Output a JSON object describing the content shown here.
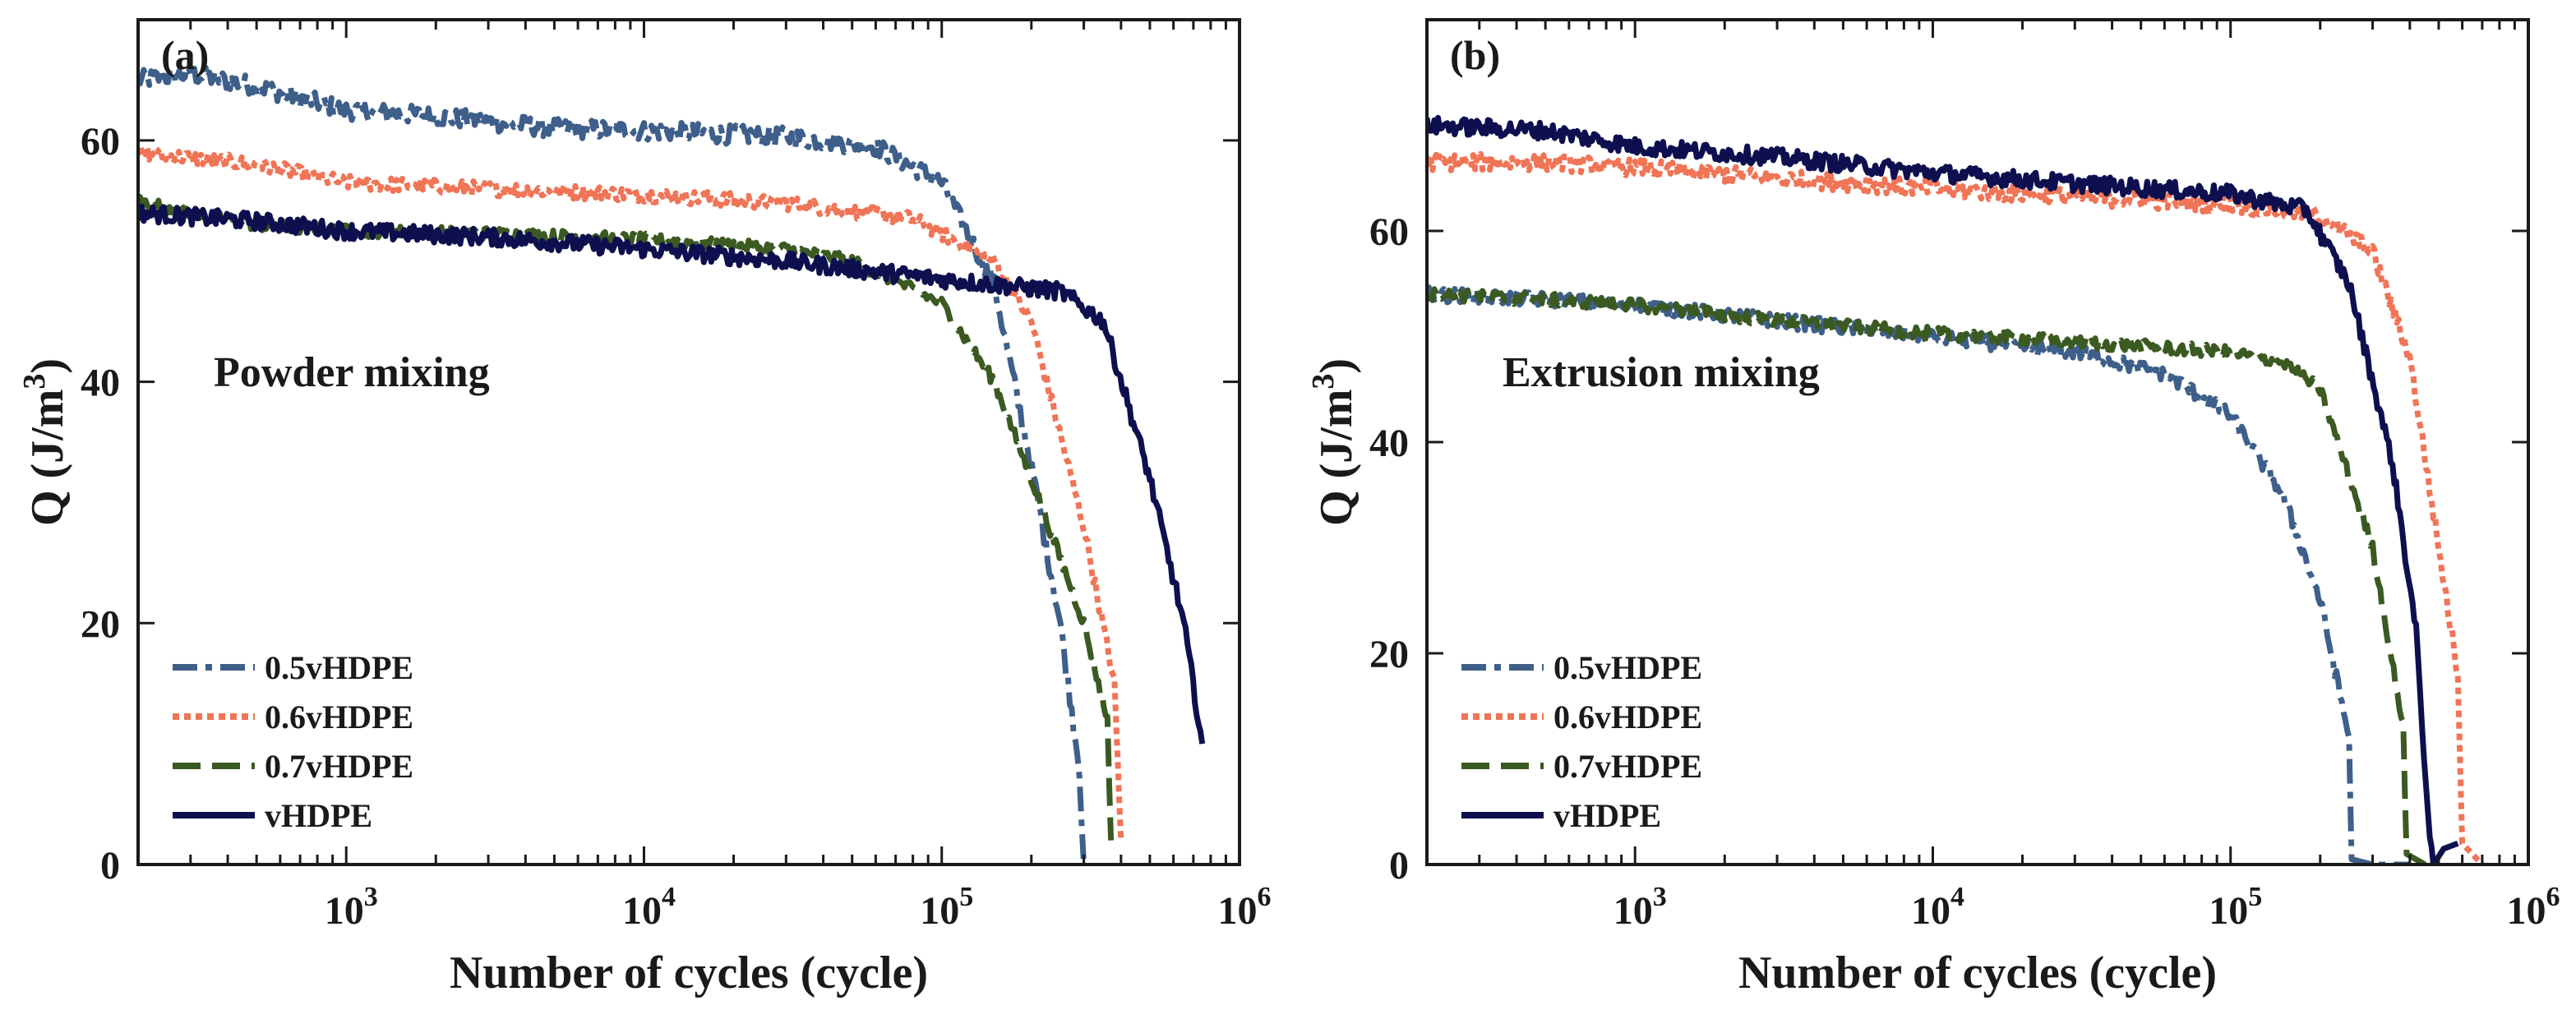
{
  "chart_data": [
    {
      "type": "line",
      "panel_label": "(a)",
      "annotation": "Powder mixing",
      "xlabel": "Number of cycles (cycle)",
      "ylabel": "Q (J/m",
      "ylabel_sup": "3",
      "ylabel_close": ")",
      "xscale": "log",
      "xlim": [
        200,
        1000000
      ],
      "ylim": [
        0,
        70
      ],
      "xticks": [
        {
          "value": 1000,
          "base": "10",
          "exp": "3"
        },
        {
          "value": 10000,
          "base": "10",
          "exp": "4"
        },
        {
          "value": 100000,
          "base": "10",
          "exp": "5"
        },
        {
          "value": 1000000,
          "base": "10",
          "exp": "6"
        }
      ],
      "yticks": [
        {
          "value": 0,
          "label": "0"
        },
        {
          "value": 20,
          "label": "20"
        },
        {
          "value": 40,
          "label": "40"
        },
        {
          "value": 60,
          "label": "60"
        }
      ],
      "legend_position": "lower-left",
      "series": [
        {
          "name": "0.5vHDPE",
          "color": "#3e5f8a",
          "dash": "30 10 8 10",
          "noise": 0.8,
          "points": [
            [
              200,
              65
            ],
            [
              300,
              65.5
            ],
            [
              500,
              64.5
            ],
            [
              700,
              63.5
            ],
            [
              1000,
              62.5
            ],
            [
              2000,
              62
            ],
            [
              5000,
              61
            ],
            [
              10000,
              60.8
            ],
            [
              30000,
              60.3
            ],
            [
              60000,
              59.5
            ],
            [
              100000,
              56.5
            ],
            [
              150000,
              48
            ],
            [
              200000,
              33
            ],
            [
              250000,
              20
            ],
            [
              290000,
              8
            ],
            [
              300000,
              0
            ]
          ]
        },
        {
          "name": "0.6vHDPE",
          "color": "#f07456",
          "dash": "8 6",
          "noise": 0.6,
          "points": [
            [
              200,
              59
            ],
            [
              500,
              58
            ],
            [
              1000,
              56.5
            ],
            [
              3000,
              56
            ],
            [
              10000,
              55.5
            ],
            [
              30000,
              54.8
            ],
            [
              80000,
              53.5
            ],
            [
              150000,
              50
            ],
            [
              200000,
              45
            ],
            [
              300000,
              28
            ],
            [
              380000,
              15
            ],
            [
              400000,
              2
            ]
          ]
        },
        {
          "name": "0.7vHDPE",
          "color": "#3b5a21",
          "dash": "34 14",
          "noise": 0.5,
          "points": [
            [
              200,
              55
            ],
            [
              500,
              53
            ],
            [
              1000,
              52.5
            ],
            [
              3000,
              52.3
            ],
            [
              10000,
              51.8
            ],
            [
              30000,
              51
            ],
            [
              50000,
              50
            ],
            [
              100000,
              46.5
            ],
            [
              150000,
              40
            ],
            [
              200000,
              32
            ],
            [
              300000,
              20
            ],
            [
              360000,
              12
            ],
            [
              370000,
              2
            ]
          ]
        },
        {
          "name": "vHDPE",
          "color": "#0d0f4f",
          "dash": "",
          "noise": 0.7,
          "points": [
            [
              200,
              54
            ],
            [
              500,
              53.3
            ],
            [
              1000,
              52.5
            ],
            [
              3000,
              52
            ],
            [
              10000,
              51
            ],
            [
              30000,
              50
            ],
            [
              100000,
              48.5
            ],
            [
              250000,
              47.5
            ],
            [
              350000,
              45
            ],
            [
              500000,
              32
            ],
            [
              650000,
              20
            ],
            [
              750000,
              10
            ]
          ]
        }
      ]
    },
    {
      "type": "line",
      "panel_label": "(b)",
      "annotation": "Extrusion mixing",
      "xlabel": "Number of cycles (cycle)",
      "ylabel": "Q (J/m",
      "ylabel_sup": "3",
      "ylabel_close": ")",
      "xscale": "log",
      "xlim": [
        200,
        1000000
      ],
      "ylim": [
        0,
        80
      ],
      "xticks": [
        {
          "value": 1000,
          "base": "10",
          "exp": "3"
        },
        {
          "value": 10000,
          "base": "10",
          "exp": "4"
        },
        {
          "value": 100000,
          "base": "10",
          "exp": "5"
        },
        {
          "value": 1000000,
          "base": "10",
          "exp": "6"
        }
      ],
      "yticks": [
        {
          "value": 0,
          "label": "0"
        },
        {
          "value": 20,
          "label": "20"
        },
        {
          "value": 40,
          "label": "40"
        },
        {
          "value": 60,
          "label": "60"
        }
      ],
      "legend_position": "lower-left",
      "series": [
        {
          "name": "0.5vHDPE",
          "color": "#3e5f8a",
          "dash": "30 10 8 10",
          "noise": 0.7,
          "points": [
            [
              200,
              54
            ],
            [
              500,
              53.5
            ],
            [
              1000,
              53
            ],
            [
              3000,
              51.5
            ],
            [
              10000,
              50
            ],
            [
              30000,
              48.5
            ],
            [
              60000,
              46.5
            ],
            [
              100000,
              42.5
            ],
            [
              150000,
              35
            ],
            [
              200000,
              25
            ],
            [
              250000,
              12
            ],
            [
              255000,
              0.5
            ],
            [
              300000,
              0
            ],
            [
              400000,
              0
            ]
          ]
        },
        {
          "name": "0.6vHDPE",
          "color": "#f07456",
          "dash": "8 6",
          "noise": 0.8,
          "points": [
            [
              200,
              66.5
            ],
            [
              500,
              66.5
            ],
            [
              1000,
              66
            ],
            [
              3000,
              65
            ],
            [
              10000,
              64
            ],
            [
              30000,
              63.2
            ],
            [
              100000,
              62.5
            ],
            [
              200000,
              61.5
            ],
            [
              300000,
              58
            ],
            [
              400000,
              48
            ],
            [
              500000,
              30
            ],
            [
              580000,
              18
            ],
            [
              600000,
              2
            ],
            [
              700000,
              0
            ]
          ]
        },
        {
          "name": "0.7vHDPE",
          "color": "#3b5a21",
          "dash": "34 14",
          "noise": 0.6,
          "points": [
            [
              200,
              54
            ],
            [
              500,
              53.5
            ],
            [
              1000,
              53
            ],
            [
              3000,
              51.5
            ],
            [
              10000,
              50.3
            ],
            [
              30000,
              49.5
            ],
            [
              100000,
              48.5
            ],
            [
              150000,
              47.5
            ],
            [
              200000,
              45
            ],
            [
              300000,
              30
            ],
            [
              380000,
              13
            ],
            [
              390000,
              1
            ],
            [
              450000,
              0
            ]
          ]
        },
        {
          "name": "vHDPE",
          "color": "#0d0f4f",
          "dash": "",
          "noise": 0.8,
          "points": [
            [
              200,
              70
            ],
            [
              500,
              69.5
            ],
            [
              1000,
              68
            ],
            [
              3000,
              67
            ],
            [
              10000,
              65.5
            ],
            [
              30000,
              64.5
            ],
            [
              100000,
              63.5
            ],
            [
              180000,
              62
            ],
            [
              250000,
              55
            ],
            [
              350000,
              38
            ],
            [
              420000,
              22
            ],
            [
              460000,
              5
            ],
            [
              480000,
              0
            ],
            [
              520000,
              1.5
            ],
            [
              580000,
              2
            ]
          ]
        }
      ]
    }
  ]
}
